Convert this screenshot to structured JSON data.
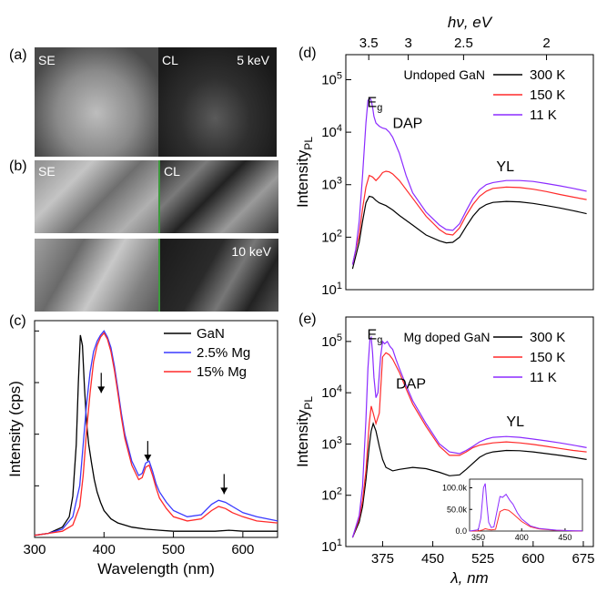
{
  "panel_labels": {
    "a": "(a)",
    "b": "(b)",
    "c": "(c)",
    "d": "(d)",
    "e": "(e)"
  },
  "micrographs": {
    "a": {
      "left_label": "SE",
      "right_label": "CL",
      "energy": "5 keV"
    },
    "b": {
      "left_label": "SE",
      "right_label": "CL",
      "energy": "10 keV"
    }
  },
  "colors": {
    "black": "#000000",
    "blue": "#3a3aff",
    "red": "#ff2a2a",
    "purple": "#8b2bff",
    "green": "#2ca02c"
  },
  "chart_data": [
    {
      "id": "c",
      "type": "line",
      "title": "",
      "xlabel": "Wavelength (nm)",
      "ylabel": "Intensity (cps)",
      "xlim": [
        300,
        650
      ],
      "xticks": [
        300,
        400,
        500,
        600
      ],
      "ylim": [
        0,
        1.05
      ],
      "y_tick_labels_shown": false,
      "legend": {
        "position": "top-right",
        "entries": [
          "GaN",
          "2.5% Mg",
          "15% Mg"
        ]
      },
      "annotations": [
        {
          "type": "arrow-down",
          "x": 396,
          "y": 0.7
        },
        {
          "type": "arrow-down",
          "x": 463,
          "y": 0.37
        },
        {
          "type": "arrow-down",
          "x": 573,
          "y": 0.21
        }
      ],
      "series": [
        {
          "name": "GaN",
          "color": "#000000",
          "x": [
            300,
            320,
            340,
            350,
            355,
            360,
            363,
            366,
            369,
            372,
            375,
            378,
            382,
            386,
            390,
            395,
            400,
            410,
            420,
            440,
            460,
            480,
            500,
            520,
            540,
            560,
            580,
            600,
            620,
            650
          ],
          "y": [
            0.01,
            0.02,
            0.05,
            0.1,
            0.2,
            0.45,
            0.75,
            0.98,
            0.93,
            0.72,
            0.55,
            0.45,
            0.36,
            0.28,
            0.22,
            0.17,
            0.13,
            0.09,
            0.07,
            0.05,
            0.04,
            0.035,
            0.03,
            0.03,
            0.03,
            0.03,
            0.035,
            0.03,
            0.03,
            0.03
          ]
        },
        {
          "name": "2.5% Mg",
          "color": "#3a3aff",
          "x": [
            300,
            320,
            340,
            355,
            365,
            370,
            375,
            380,
            385,
            390,
            395,
            400,
            405,
            410,
            415,
            420,
            425,
            430,
            440,
            450,
            455,
            460,
            465,
            470,
            475,
            480,
            490,
            500,
            520,
            540,
            555,
            565,
            575,
            585,
            600,
            620,
            650
          ],
          "y": [
            0.01,
            0.02,
            0.04,
            0.1,
            0.25,
            0.45,
            0.65,
            0.8,
            0.9,
            0.95,
            0.98,
            1.0,
            0.97,
            0.92,
            0.83,
            0.72,
            0.6,
            0.5,
            0.37,
            0.3,
            0.31,
            0.36,
            0.37,
            0.32,
            0.26,
            0.22,
            0.17,
            0.13,
            0.1,
            0.11,
            0.16,
            0.18,
            0.17,
            0.15,
            0.12,
            0.1,
            0.08
          ]
        },
        {
          "name": "15% Mg",
          "color": "#ff2a2a",
          "x": [
            300,
            320,
            340,
            355,
            365,
            370,
            375,
            380,
            385,
            390,
            395,
            400,
            405,
            410,
            415,
            420,
            425,
            430,
            440,
            450,
            455,
            460,
            465,
            470,
            475,
            480,
            490,
            500,
            520,
            540,
            555,
            565,
            575,
            585,
            600,
            620,
            650
          ],
          "y": [
            0.01,
            0.02,
            0.03,
            0.06,
            0.15,
            0.3,
            0.52,
            0.7,
            0.85,
            0.93,
            0.97,
            0.99,
            0.96,
            0.9,
            0.81,
            0.7,
            0.58,
            0.48,
            0.35,
            0.28,
            0.29,
            0.34,
            0.35,
            0.3,
            0.24,
            0.19,
            0.14,
            0.1,
            0.08,
            0.09,
            0.13,
            0.15,
            0.14,
            0.12,
            0.1,
            0.08,
            0.07
          ]
        }
      ]
    },
    {
      "id": "d",
      "type": "line",
      "title": "",
      "top_axis_label": "hν, eV",
      "top_ticks": [
        3.5,
        3,
        2.5,
        2
      ],
      "ylabel": "Intensity",
      "ylabel_sub": "PL",
      "xlim": [
        320,
        690
      ],
      "ylim_log": [
        10,
        300000
      ],
      "y_scale": "log",
      "yticks": [
        "10^1",
        "10^2",
        "10^3",
        "10^4",
        "10^5"
      ],
      "legend": {
        "position": "top-right",
        "entries": [
          "300 K",
          "150 K",
          "11 K"
        ]
      },
      "inner_label": "Undoped GaN",
      "annotations": [
        {
          "text": "E",
          "sub": "g",
          "x": 352,
          "y": 30000
        },
        {
          "text": "DAP",
          "x": 390,
          "y": 12000
        },
        {
          "text": "YL",
          "x": 545,
          "y": 1800
        }
      ],
      "series": [
        {
          "name": "300 K",
          "color": "#000000",
          "x": [
            330,
            340,
            345,
            350,
            355,
            360,
            365,
            370,
            380,
            390,
            400,
            420,
            440,
            460,
            470,
            480,
            490,
            500,
            510,
            520,
            530,
            540,
            560,
            580,
            600,
            620,
            640,
            660,
            680
          ],
          "y": [
            25,
            80,
            200,
            450,
            600,
            580,
            500,
            450,
            400,
            330,
            260,
            170,
            110,
            85,
            78,
            80,
            100,
            160,
            250,
            350,
            420,
            460,
            480,
            470,
            440,
            400,
            360,
            320,
            280
          ]
        },
        {
          "name": "150 K",
          "color": "#ff2a2a",
          "x": [
            330,
            340,
            345,
            350,
            355,
            360,
            365,
            370,
            375,
            380,
            385,
            390,
            400,
            420,
            440,
            460,
            470,
            480,
            490,
            500,
            510,
            520,
            530,
            540,
            560,
            580,
            600,
            620,
            640,
            660,
            680
          ],
          "y": [
            30,
            110,
            350,
            900,
            1500,
            1400,
            1200,
            1400,
            1700,
            1800,
            1750,
            1600,
            1200,
            550,
            250,
            140,
            115,
            110,
            150,
            260,
            420,
            600,
            750,
            850,
            900,
            880,
            820,
            740,
            650,
            580,
            520
          ]
        },
        {
          "name": "11 K",
          "color": "#8b2bff",
          "x": [
            330,
            335,
            340,
            345,
            350,
            353,
            356,
            358,
            360,
            362,
            365,
            370,
            375,
            380,
            385,
            390,
            400,
            410,
            420,
            440,
            460,
            470,
            480,
            490,
            500,
            510,
            520,
            530,
            540,
            560,
            580,
            600,
            620,
            640,
            660,
            680
          ],
          "y": [
            30,
            60,
            200,
            1500,
            15000,
            40000,
            45000,
            40000,
            30000,
            20000,
            15000,
            13000,
            12000,
            11500,
            10000,
            8000,
            4000,
            1500,
            700,
            300,
            170,
            140,
            135,
            180,
            320,
            550,
            800,
            1000,
            1100,
            1200,
            1200,
            1150,
            1050,
            950,
            850,
            750
          ]
        }
      ]
    },
    {
      "id": "e",
      "type": "line",
      "title": "",
      "xlabel": "λ, nm",
      "xticks": [
        375,
        450,
        525,
        600,
        675
      ],
      "ylabel": "Intensity",
      "ylabel_sub": "PL",
      "xlim": [
        320,
        690
      ],
      "ylim_log": [
        10,
        300000
      ],
      "y_scale": "log",
      "yticks": [
        "10^1",
        "10^2",
        "10^3",
        "10^4",
        "10^5"
      ],
      "legend": {
        "position": "top-right",
        "entries": [
          "300 K",
          "150 K",
          "11 K"
        ]
      },
      "inner_label": "Mg doped GaN",
      "annotations": [
        {
          "text": "E",
          "sub": "g",
          "x": 352,
          "y": 110000
        },
        {
          "text": "DAP",
          "x": 395,
          "y": 12000
        },
        {
          "text": "YL",
          "x": 560,
          "y": 2200
        }
      ],
      "series": [
        {
          "name": "300 K",
          "color": "#000000",
          "x": [
            330,
            340,
            345,
            350,
            355,
            358,
            361,
            365,
            370,
            375,
            380,
            390,
            400,
            420,
            440,
            460,
            475,
            490,
            500,
            510,
            520,
            530,
            540,
            560,
            580,
            600,
            620,
            640,
            660,
            680
          ],
          "y": [
            15,
            30,
            60,
            200,
            900,
            1800,
            2500,
            1800,
            900,
            500,
            350,
            300,
            320,
            350,
            330,
            280,
            240,
            250,
            320,
            420,
            550,
            650,
            700,
            750,
            740,
            700,
            650,
            600,
            550,
            500
          ]
        },
        {
          "name": "150 K",
          "color": "#ff2a2a",
          "x": [
            330,
            340,
            345,
            350,
            355,
            358,
            361,
            365,
            370,
            375,
            380,
            385,
            390,
            400,
            410,
            420,
            440,
            460,
            475,
            490,
            500,
            510,
            520,
            530,
            540,
            560,
            580,
            600,
            620,
            640,
            660,
            680
          ],
          "y": [
            15,
            35,
            80,
            300,
            2500,
            5500,
            4000,
            2500,
            4000,
            50000,
            60000,
            55000,
            45000,
            25000,
            12000,
            6000,
            2200,
            900,
            600,
            600,
            700,
            850,
            950,
            1000,
            1050,
            1100,
            1050,
            980,
            900,
            820,
            750,
            700
          ]
        },
        {
          "name": "11 K",
          "color": "#8b2bff",
          "x": [
            330,
            340,
            345,
            350,
            353,
            356,
            358,
            360,
            362,
            365,
            368,
            372,
            375,
            378,
            382,
            386,
            390,
            395,
            400,
            410,
            420,
            440,
            460,
            475,
            490,
            500,
            510,
            520,
            530,
            540,
            560,
            580,
            600,
            620,
            640,
            660,
            680
          ],
          "y": [
            15,
            40,
            150,
            3000,
            30000,
            110000,
            120000,
            60000,
            20000,
            8000,
            10000,
            50000,
            100000,
            90000,
            100000,
            80000,
            70000,
            45000,
            30000,
            14000,
            7000,
            2500,
            1000,
            700,
            650,
            750,
            900,
            1100,
            1250,
            1350,
            1400,
            1350,
            1250,
            1150,
            1050,
            950,
            850
          ]
        }
      ]
    },
    {
      "id": "e-inset",
      "type": "line",
      "xlim": [
        340,
        470
      ],
      "xticks": [
        350,
        400,
        450
      ],
      "ylim": [
        0,
        120000
      ],
      "yticks": [
        "0.0",
        "50.0k",
        "100.0k"
      ],
      "ytick_values": [
        0,
        50000,
        100000
      ],
      "series": [
        {
          "name": "150 K",
          "color": "#ff2a2a",
          "x": [
            340,
            350,
            355,
            358,
            361,
            365,
            370,
            375,
            380,
            385,
            390,
            400,
            410,
            420,
            440,
            460,
            470
          ],
          "y": [
            0,
            300,
            2500,
            5500,
            4000,
            2500,
            4000,
            45000,
            50000,
            48000,
            40000,
            22000,
            10000,
            5000,
            1500,
            500,
            300
          ]
        },
        {
          "name": "11 K",
          "color": "#8b2bff",
          "x": [
            340,
            350,
            353,
            356,
            358,
            360,
            362,
            365,
            368,
            372,
            375,
            378,
            382,
            386,
            390,
            395,
            400,
            410,
            420,
            440,
            460,
            470
          ],
          "y": [
            0,
            3000,
            30000,
            100000,
            110000,
            60000,
            20000,
            8000,
            10000,
            50000,
            80000,
            78000,
            85000,
            72000,
            62000,
            42000,
            28000,
            12000,
            6000,
            2000,
            700,
            400
          ]
        }
      ]
    }
  ]
}
